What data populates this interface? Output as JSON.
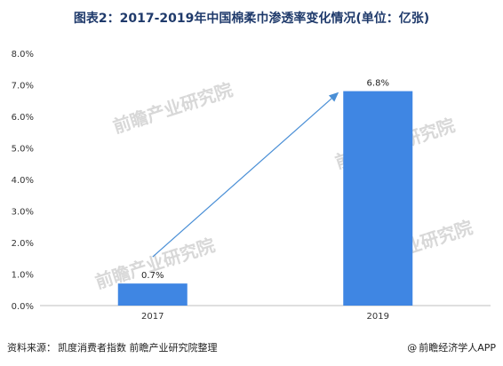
{
  "title": "图表2：2017-2019年中国棉柔巾渗透率变化情况(单位：亿张)",
  "source": {
    "label": "资料来源：",
    "text": "凯度消费者指数 前瞻产业研究院整理"
  },
  "credit": {
    "mark": "@",
    "text": "前瞻经济学人APP"
  },
  "watermark": {
    "text": "前瞻产业研究院"
  },
  "colors": {
    "bar": "#3f86e3",
    "arrow": "#4a8fd6",
    "axis": "#bfbfbf",
    "title": "#1f3a6b"
  },
  "chart_data": {
    "type": "bar",
    "categories": [
      "2017",
      "2019"
    ],
    "values": [
      0.7,
      6.8
    ],
    "data_labels": [
      "0.7%",
      "6.8%"
    ],
    "y_ticks": [
      "0.0%",
      "1.0%",
      "2.0%",
      "3.0%",
      "4.0%",
      "5.0%",
      "6.0%",
      "7.0%",
      "8.0%"
    ],
    "ylim": [
      0,
      8
    ],
    "grid": false,
    "annotations": [
      {
        "type": "arrow",
        "from_category": "2017",
        "to_category": "2019"
      }
    ],
    "xlabel": "",
    "ylabel": ""
  }
}
